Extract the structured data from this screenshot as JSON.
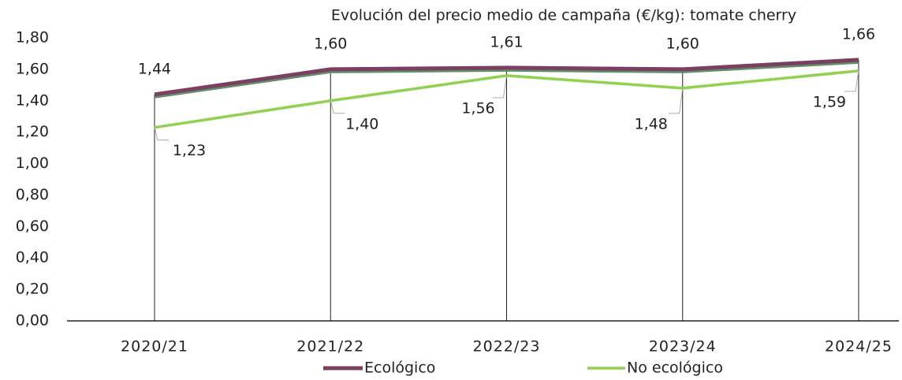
{
  "chart_data": {
    "type": "line",
    "title": "Evolución del precio medio de campaña (€/kg): tomate cherry",
    "categories": [
      "2020/21",
      "2021/22",
      "2022/23",
      "2023/24",
      "2024/25"
    ],
    "series": [
      {
        "name": "Ecológico",
        "color": "#7b3f62",
        "values": [
          1.44,
          1.6,
          1.61,
          1.6,
          1.66
        ],
        "value_labels": [
          "1,44",
          "1,60",
          "1,61",
          "1,60",
          "1,66"
        ]
      },
      {
        "name": "No ecológico",
        "color": "#92d050",
        "values": [
          1.23,
          1.4,
          1.56,
          1.48,
          1.59
        ],
        "value_labels": [
          "1,23",
          "1,40",
          "1,56",
          "1,48",
          "1,59"
        ]
      }
    ],
    "ylim": [
      0,
      1.8
    ],
    "yticks": [
      {
        "value": 0,
        "label": "0,00"
      },
      {
        "value": 0.2,
        "label": "0,20"
      },
      {
        "value": 0.4,
        "label": "0,40"
      },
      {
        "value": 0.6,
        "label": "0,60"
      },
      {
        "value": 0.8,
        "label": "0,80"
      },
      {
        "value": 1.0,
        "label": "1,00"
      },
      {
        "value": 1.2,
        "label": "1,20"
      },
      {
        "value": 1.4,
        "label": "1,40"
      },
      {
        "value": 1.6,
        "label": "1,60"
      },
      {
        "value": 1.8,
        "label": "1,80"
      }
    ],
    "legend": "bottom"
  }
}
